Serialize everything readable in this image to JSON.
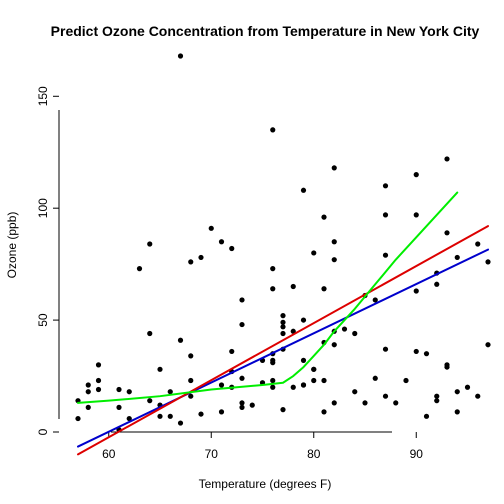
{
  "chart_data": {
    "type": "scatter",
    "title": "Predict Ozone Concentration from Temperature in New York City",
    "xlabel": "Temperature (degrees F)",
    "ylabel": "Ozone (ppb)",
    "xlim": [
      57,
      97
    ],
    "ylim": [
      0,
      168
    ],
    "xticks": [
      60,
      70,
      80,
      90
    ],
    "yticks": [
      0,
      50,
      100,
      150
    ],
    "grid": false,
    "legend": "none",
    "points": [
      [
        67,
        41
      ],
      [
        72,
        36
      ],
      [
        74,
        12
      ],
      [
        62,
        18
      ],
      [
        65,
        28
      ],
      [
        59,
        23
      ],
      [
        61,
        19
      ],
      [
        69,
        8
      ],
      [
        66,
        7
      ],
      [
        68,
        16
      ],
      [
        58,
        11
      ],
      [
        64,
        14
      ],
      [
        66,
        18
      ],
      [
        57,
        14
      ],
      [
        68,
        34
      ],
      [
        62,
        6
      ],
      [
        59,
        30
      ],
      [
        73,
        11
      ],
      [
        61,
        1
      ],
      [
        61,
        11
      ],
      [
        67,
        4
      ],
      [
        79,
        32
      ],
      [
        76,
        23
      ],
      [
        82,
        45
      ],
      [
        90,
        115
      ],
      [
        87,
        37
      ],
      [
        93,
        29
      ],
      [
        92,
        71
      ],
      [
        82,
        39
      ],
      [
        80,
        23
      ],
      [
        79,
        21
      ],
      [
        77,
        37
      ],
      [
        72,
        20
      ],
      [
        65,
        12
      ],
      [
        73,
        13
      ],
      [
        76,
        135
      ],
      [
        77,
        49
      ],
      [
        76,
        32
      ],
      [
        76,
        64
      ],
      [
        81,
        40
      ],
      [
        82,
        77
      ],
      [
        90,
        97
      ],
      [
        87,
        97
      ],
      [
        82,
        85
      ],
      [
        77,
        10
      ],
      [
        72,
        27
      ],
      [
        65,
        7
      ],
      [
        73,
        48
      ],
      [
        76,
        35
      ],
      [
        85,
        61
      ],
      [
        87,
        79
      ],
      [
        90,
        63
      ],
      [
        92,
        16
      ],
      [
        80,
        80
      ],
      [
        79,
        108
      ],
      [
        78,
        20
      ],
      [
        77,
        52
      ],
      [
        72,
        82
      ],
      [
        79,
        50
      ],
      [
        81,
        64
      ],
      [
        86,
        59
      ],
      [
        97,
        39
      ],
      [
        94,
        9
      ],
      [
        96,
        16
      ],
      [
        94,
        78
      ],
      [
        91,
        35
      ],
      [
        92,
        66
      ],
      [
        93,
        122
      ],
      [
        93,
        89
      ],
      [
        87,
        110
      ],
      [
        84,
        44
      ],
      [
        80,
        28
      ],
      [
        78,
        65
      ],
      [
        75,
        22
      ],
      [
        73,
        59
      ],
      [
        81,
        23
      ],
      [
        76,
        31
      ],
      [
        77,
        44
      ],
      [
        71,
        21
      ],
      [
        71,
        9
      ],
      [
        78,
        45
      ],
      [
        67,
        168
      ],
      [
        76,
        73
      ],
      [
        68,
        76
      ],
      [
        82,
        118
      ],
      [
        64,
        84
      ],
      [
        71,
        85
      ],
      [
        81,
        96
      ],
      [
        69,
        78
      ],
      [
        63,
        73
      ],
      [
        70,
        91
      ],
      [
        77,
        47
      ],
      [
        75,
        32
      ],
      [
        76,
        20
      ],
      [
        68,
        23
      ],
      [
        58,
        21
      ],
      [
        73,
        24
      ],
      [
        64,
        44
      ],
      [
        79,
        21
      ],
      [
        80,
        28
      ],
      [
        81,
        9
      ],
      [
        82,
        13
      ],
      [
        83,
        46
      ],
      [
        84,
        18
      ],
      [
        85,
        13
      ],
      [
        86,
        24
      ],
      [
        87,
        16
      ],
      [
        88,
        13
      ],
      [
        89,
        23
      ],
      [
        90,
        36
      ],
      [
        91,
        7
      ],
      [
        92,
        14
      ],
      [
        93,
        30
      ],
      [
        94,
        18
      ],
      [
        95,
        20
      ],
      [
        96,
        84
      ],
      [
        97,
        76
      ],
      [
        57,
        6
      ],
      [
        58,
        18
      ],
      [
        59,
        19
      ]
    ],
    "series": [
      {
        "type": "line",
        "color": "#0000cc",
        "x": [
          57,
          97
        ],
        "y": [
          -6.5,
          81.5
        ]
      },
      {
        "type": "line",
        "color": "#dd0000",
        "x": [
          57,
          97
        ],
        "y": [
          -10,
          92
        ]
      },
      {
        "type": "line",
        "color": "#00ee00",
        "x": [
          57,
          60,
          65,
          70,
          75,
          77,
          78,
          79,
          80,
          81,
          82,
          84,
          86,
          88,
          90,
          92,
          94
        ],
        "y": [
          13,
          14,
          16,
          19,
          21,
          22,
          25,
          29,
          34,
          39,
          45,
          55,
          66,
          77,
          87,
          97,
          107
        ]
      }
    ]
  }
}
